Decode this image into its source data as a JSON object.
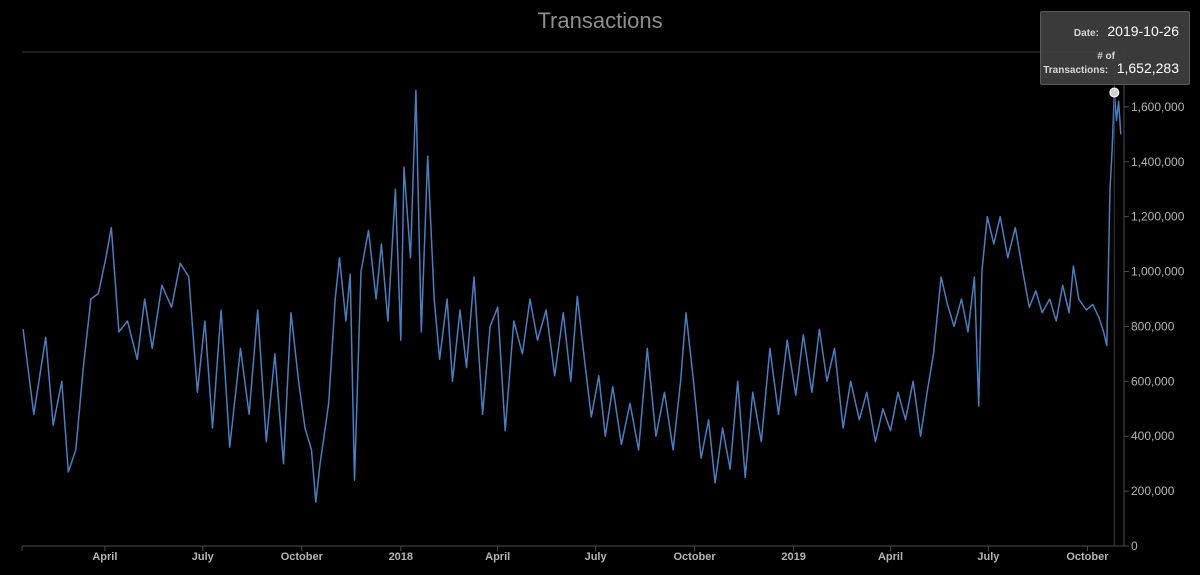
{
  "title": "Transactions",
  "chart_data": {
    "type": "line",
    "title": "Transactions",
    "xlabel": "",
    "ylabel": "",
    "x_range": [
      "2017-01-14",
      "2019-11-04"
    ],
    "ylim": [
      0,
      1800000
    ],
    "y_ticks": [
      0,
      200000,
      400000,
      600000,
      800000,
      1000000,
      1200000,
      1400000,
      1600000
    ],
    "y_tick_labels": [
      "0",
      "200,000",
      "400,000",
      "600,000",
      "800,000",
      "1,000,000",
      "1,200,000",
      "1,400,000",
      "1,600,000"
    ],
    "x_ticks": [
      {
        "date": "2017-04-01",
        "label": "April"
      },
      {
        "date": "2017-07-01",
        "label": "July"
      },
      {
        "date": "2017-10-01",
        "label": "October"
      },
      {
        "date": "2018-01-01",
        "label": "2018"
      },
      {
        "date": "2018-04-01",
        "label": "April"
      },
      {
        "date": "2018-07-01",
        "label": "July"
      },
      {
        "date": "2018-10-01",
        "label": "October"
      },
      {
        "date": "2019-01-01",
        "label": "2019"
      },
      {
        "date": "2019-04-01",
        "label": "April"
      },
      {
        "date": "2019-07-01",
        "label": "July"
      },
      {
        "date": "2019-10-01",
        "label": "October"
      }
    ],
    "grid": false,
    "legend": "none",
    "colors": {
      "series": "#4a7ebf",
      "background": "#000000",
      "axis": "#4d4d4d",
      "marker": "#d0d0d0"
    },
    "series": [
      {
        "points": [
          [
            "2017-01-15",
            790000
          ],
          [
            "2017-01-25",
            480000
          ],
          [
            "2017-02-05",
            760000
          ],
          [
            "2017-02-12",
            440000
          ],
          [
            "2017-02-20",
            600000
          ],
          [
            "2017-02-26",
            270000
          ],
          [
            "2017-03-05",
            350000
          ],
          [
            "2017-03-12",
            650000
          ],
          [
            "2017-03-19",
            900000
          ],
          [
            "2017-03-26",
            920000
          ],
          [
            "2017-04-02",
            1050000
          ],
          [
            "2017-04-07",
            1160000
          ],
          [
            "2017-04-14",
            780000
          ],
          [
            "2017-04-22",
            820000
          ],
          [
            "2017-05-01",
            680000
          ],
          [
            "2017-05-08",
            900000
          ],
          [
            "2017-05-15",
            720000
          ],
          [
            "2017-05-24",
            950000
          ],
          [
            "2017-06-02",
            870000
          ],
          [
            "2017-06-10",
            1030000
          ],
          [
            "2017-06-18",
            980000
          ],
          [
            "2017-06-26",
            560000
          ],
          [
            "2017-07-03",
            820000
          ],
          [
            "2017-07-10",
            430000
          ],
          [
            "2017-07-18",
            860000
          ],
          [
            "2017-07-26",
            360000
          ],
          [
            "2017-08-05",
            720000
          ],
          [
            "2017-08-13",
            480000
          ],
          [
            "2017-08-21",
            860000
          ],
          [
            "2017-08-29",
            380000
          ],
          [
            "2017-09-06",
            700000
          ],
          [
            "2017-09-14",
            300000
          ],
          [
            "2017-09-21",
            850000
          ],
          [
            "2017-09-28",
            600000
          ],
          [
            "2017-10-04",
            430000
          ],
          [
            "2017-10-10",
            350000
          ],
          [
            "2017-10-14",
            160000
          ],
          [
            "2017-10-18",
            300000
          ],
          [
            "2017-10-26",
            520000
          ],
          [
            "2017-11-01",
            900000
          ],
          [
            "2017-11-05",
            1050000
          ],
          [
            "2017-11-11",
            820000
          ],
          [
            "2017-11-15",
            990000
          ],
          [
            "2017-11-19",
            240000
          ],
          [
            "2017-11-25",
            1000000
          ],
          [
            "2017-12-02",
            1150000
          ],
          [
            "2017-12-09",
            900000
          ],
          [
            "2017-12-14",
            1100000
          ],
          [
            "2017-12-20",
            820000
          ],
          [
            "2017-12-27",
            1300000
          ],
          [
            "2018-01-01",
            750000
          ],
          [
            "2018-01-04",
            1380000
          ],
          [
            "2018-01-10",
            1050000
          ],
          [
            "2018-01-15",
            1660000
          ],
          [
            "2018-01-20",
            780000
          ],
          [
            "2018-01-26",
            1420000
          ],
          [
            "2018-02-01",
            900000
          ],
          [
            "2018-02-06",
            680000
          ],
          [
            "2018-02-13",
            900000
          ],
          [
            "2018-02-18",
            600000
          ],
          [
            "2018-02-25",
            860000
          ],
          [
            "2018-03-03",
            650000
          ],
          [
            "2018-03-10",
            980000
          ],
          [
            "2018-03-18",
            480000
          ],
          [
            "2018-03-25",
            800000
          ],
          [
            "2018-04-01",
            870000
          ],
          [
            "2018-04-08",
            420000
          ],
          [
            "2018-04-16",
            820000
          ],
          [
            "2018-04-24",
            700000
          ],
          [
            "2018-05-01",
            900000
          ],
          [
            "2018-05-08",
            750000
          ],
          [
            "2018-05-16",
            860000
          ],
          [
            "2018-05-24",
            620000
          ],
          [
            "2018-06-01",
            850000
          ],
          [
            "2018-06-08",
            600000
          ],
          [
            "2018-06-14",
            910000
          ],
          [
            "2018-06-20",
            700000
          ],
          [
            "2018-06-27",
            470000
          ],
          [
            "2018-07-04",
            620000
          ],
          [
            "2018-07-10",
            400000
          ],
          [
            "2018-07-17",
            580000
          ],
          [
            "2018-07-25",
            370000
          ],
          [
            "2018-08-02",
            520000
          ],
          [
            "2018-08-10",
            350000
          ],
          [
            "2018-08-18",
            720000
          ],
          [
            "2018-08-26",
            400000
          ],
          [
            "2018-09-03",
            560000
          ],
          [
            "2018-09-11",
            350000
          ],
          [
            "2018-09-18",
            600000
          ],
          [
            "2018-09-23",
            850000
          ],
          [
            "2018-09-30",
            600000
          ],
          [
            "2018-10-07",
            320000
          ],
          [
            "2018-10-14",
            460000
          ],
          [
            "2018-10-20",
            230000
          ],
          [
            "2018-10-27",
            430000
          ],
          [
            "2018-11-03",
            280000
          ],
          [
            "2018-11-10",
            600000
          ],
          [
            "2018-11-17",
            250000
          ],
          [
            "2018-11-24",
            560000
          ],
          [
            "2018-12-02",
            380000
          ],
          [
            "2018-12-10",
            720000
          ],
          [
            "2018-12-18",
            480000
          ],
          [
            "2018-12-26",
            750000
          ],
          [
            "2019-01-03",
            550000
          ],
          [
            "2019-01-10",
            770000
          ],
          [
            "2019-01-18",
            560000
          ],
          [
            "2019-01-25",
            790000
          ],
          [
            "2019-02-01",
            600000
          ],
          [
            "2019-02-08",
            720000
          ],
          [
            "2019-02-16",
            430000
          ],
          [
            "2019-02-23",
            600000
          ],
          [
            "2019-03-03",
            460000
          ],
          [
            "2019-03-10",
            560000
          ],
          [
            "2019-03-18",
            380000
          ],
          [
            "2019-03-25",
            500000
          ],
          [
            "2019-04-01",
            420000
          ],
          [
            "2019-04-08",
            560000
          ],
          [
            "2019-04-15",
            460000
          ],
          [
            "2019-04-22",
            600000
          ],
          [
            "2019-04-29",
            400000
          ],
          [
            "2019-05-05",
            560000
          ],
          [
            "2019-05-11",
            700000
          ],
          [
            "2019-05-18",
            980000
          ],
          [
            "2019-05-24",
            880000
          ],
          [
            "2019-05-30",
            800000
          ],
          [
            "2019-06-06",
            900000
          ],
          [
            "2019-06-12",
            780000
          ],
          [
            "2019-06-18",
            980000
          ],
          [
            "2019-06-22",
            510000
          ],
          [
            "2019-06-25",
            1000000
          ],
          [
            "2019-06-30",
            1200000
          ],
          [
            "2019-07-06",
            1100000
          ],
          [
            "2019-07-12",
            1200000
          ],
          [
            "2019-07-19",
            1050000
          ],
          [
            "2019-07-26",
            1160000
          ],
          [
            "2019-08-02",
            1000000
          ],
          [
            "2019-08-08",
            870000
          ],
          [
            "2019-08-14",
            930000
          ],
          [
            "2019-08-20",
            850000
          ],
          [
            "2019-08-27",
            900000
          ],
          [
            "2019-09-02",
            820000
          ],
          [
            "2019-09-08",
            950000
          ],
          [
            "2019-09-14",
            850000
          ],
          [
            "2019-09-18",
            1020000
          ],
          [
            "2019-09-23",
            900000
          ],
          [
            "2019-09-30",
            860000
          ],
          [
            "2019-10-06",
            880000
          ],
          [
            "2019-10-12",
            830000
          ],
          [
            "2019-10-16",
            780000
          ],
          [
            "2019-10-19",
            730000
          ],
          [
            "2019-10-22",
            1300000
          ],
          [
            "2019-10-24",
            1450000
          ],
          [
            "2019-10-26",
            1652283
          ],
          [
            "2019-10-28",
            1550000
          ],
          [
            "2019-10-30",
            1620000
          ],
          [
            "2019-11-01",
            1500000
          ]
        ]
      }
    ]
  },
  "tooltip": {
    "date_label": "Date:",
    "date_value": "2019-10-26",
    "count_label_line1": "# of",
    "count_label_line2": "Transactions:",
    "count_value": "1,652,283"
  }
}
